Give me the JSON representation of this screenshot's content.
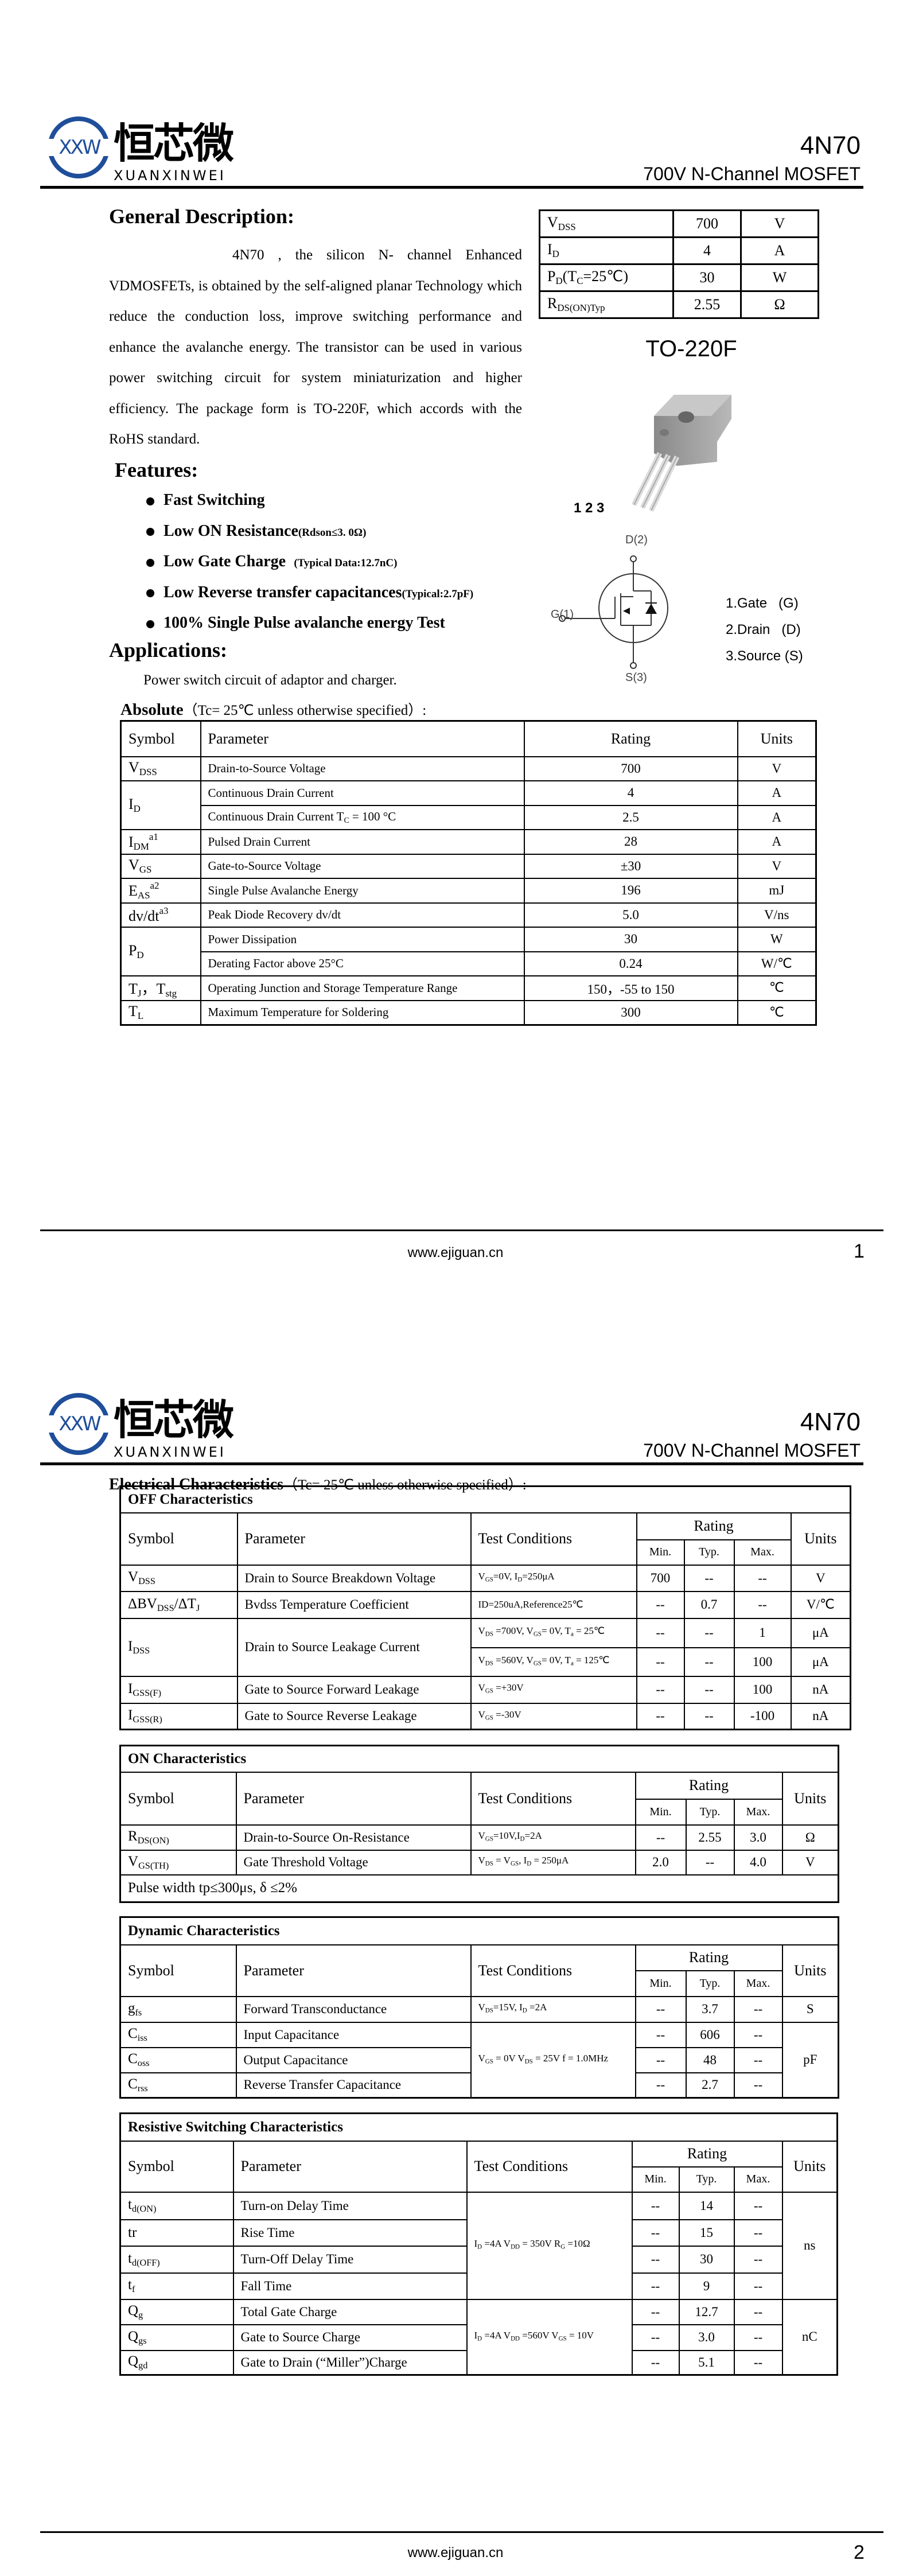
{
  "header": {
    "logo": {
      "mark": "XXW",
      "cn": "恒芯微",
      "en": "XUANXINWEI",
      "color": "#1f4e9a"
    },
    "part_number": "4N70",
    "subtitle": "700V N-Channel MOSFET"
  },
  "page1": {
    "general_description": {
      "heading": "General Description:",
      "part": "4N70",
      "text": ", the silicon N- channel Enhanced VDMOSFETs, is obtained by the self-aligned planar Technology which reduce the conduction loss, improve switching performance and enhance the avalanche energy. The transistor can be used in various power switching circuit for system miniaturization and higher efficiency. The package form is TO-220F, which accords with the RoHS standard."
    },
    "spec_table": [
      {
        "symbol": "V_{DSS}",
        "value": "700",
        "unit": "V"
      },
      {
        "symbol": "I_{D}",
        "value": "4",
        "unit": "A"
      },
      {
        "symbol": "P_{D}(T_{C}=25℃)",
        "value": "30",
        "unit": "W"
      },
      {
        "symbol": "R_{DS(ON)Typ}",
        "value": "2.55",
        "unit": "Ω"
      }
    ],
    "package": {
      "name": "TO-220F",
      "pins_label": "1 2 3"
    },
    "schematic": {
      "drain": "D(2)",
      "gate": "G(1)",
      "source": "S(3)"
    },
    "pin_legend": [
      "1.Gate   (G)",
      "2.Drain   (D)",
      "3.Source (S)"
    ],
    "features": {
      "heading": "Features:",
      "items": [
        {
          "main": "Fast Switching",
          "note": ""
        },
        {
          "main": "Low ON Resistance",
          "note": "(Rdson≤3. 0Ω)"
        },
        {
          "main": "Low Gate Charge",
          "note": "   (Typical Data:12.7nC)"
        },
        {
          "main": "Low Reverse transfer capacitances",
          "note": "(Typical:2.7pF)"
        },
        {
          "main": "100% Single Pulse avalanche energy Test",
          "note": ""
        }
      ]
    },
    "applications": {
      "heading": "Applications:",
      "text": "Power switch circuit of adaptor and charger."
    },
    "absolute": {
      "title_bold": "Absolute",
      "title_rest": "（Tc= 25℃  unless otherwise specified）:",
      "headers": [
        "Symbol",
        "Parameter",
        "Rating",
        "Units"
      ],
      "rows": [
        {
          "symbol": "V_{DSS}",
          "parameter": "Drain-to-Source Voltage",
          "rating": "700",
          "unit": "V"
        },
        {
          "symbol": "I_{D}",
          "span": 2,
          "parameter": "Continuous Drain Current",
          "rating": "4",
          "unit": "A"
        },
        {
          "parameter": "Continuous Drain Current T_{C} = 100 °C",
          "rating": "2.5",
          "unit": "A"
        },
        {
          "symbol": "I_{DM}^{a1}",
          "parameter": "Pulsed Drain Current",
          "rating": "28",
          "unit": "A"
        },
        {
          "symbol": "V_{GS}",
          "parameter": "Gate-to-Source Voltage",
          "rating": "±30",
          "unit": "V"
        },
        {
          "symbol": "E_{AS}^{a2}",
          "parameter": "Single Pulse Avalanche Energy",
          "rating": "196",
          "unit": "mJ"
        },
        {
          "symbol": "dv/dt^{a3}",
          "parameter": "Peak Diode Recovery dv/dt",
          "rating": "5.0",
          "unit": "V/ns"
        },
        {
          "symbol": "P_{D}",
          "span": 2,
          "parameter": "Power Dissipation",
          "rating": "30",
          "unit": "W"
        },
        {
          "parameter": "Derating Factor above 25°C",
          "rating": "0.24",
          "unit": "W/℃"
        },
        {
          "symbol": "T_{J}，T_{stg}",
          "parameter": "Operating Junction and Storage Temperature Range",
          "rating": "150，-55 to 150",
          "unit": "℃"
        },
        {
          "symbol": "T_{L}",
          "parameter": "Maximum Temperature for Soldering",
          "rating": "300",
          "unit": "℃"
        }
      ]
    },
    "footer": {
      "url": "www.ejiguan.cn",
      "page": "1"
    }
  },
  "page2": {
    "title_bold": "Electrical Characteristics",
    "title_rest": "（Tc= 25℃  unless otherwise specified）:",
    "col_headers": {
      "symbol": "Symbol",
      "parameter": "Parameter",
      "conditions": "Test Conditions",
      "rating": "Rating",
      "min": "Min.",
      "typ": "Typ.",
      "max": "Max.",
      "units": "Units"
    },
    "tables": [
      {
        "title": "OFF Characteristics",
        "rows": [
          {
            "symbol": "V_{DSS}",
            "parameter": "Drain to Source Breakdown Voltage",
            "cond": "V_{GS}=0V, I_{D}=250μA",
            "min": "700",
            "typ": "--",
            "max": "--",
            "unit": "V"
          },
          {
            "symbol": "ΔBV_{DSS}/ΔT_{J}",
            "parameter": "Bvdss Temperature Coefficient",
            "cond": "ID=250uA,Reference25℃",
            "min": "--",
            "typ": "0.7",
            "max": "--",
            "unit": "V/℃"
          },
          {
            "symbol": "I_{DSS}",
            "span": 2,
            "parameter": "Drain to Source Leakage Current",
            "pspan": 2,
            "cond": "V_{DS} =700V, V_{GS}= 0V, T_{a} = 25℃",
            "min": "--",
            "typ": "--",
            "max": "1",
            "unit": "μA"
          },
          {
            "cond": "V_{DS} =560V, V_{GS}= 0V, T_{a} = 125℃",
            "min": "--",
            "typ": "--",
            "max": "100",
            "unit": "μA"
          },
          {
            "symbol": "I_{GSS(F)}",
            "parameter": "Gate to Source Forward Leakage",
            "cond": "V_{GS} =+30V",
            "min": "--",
            "typ": "--",
            "max": "100",
            "unit": "nA"
          },
          {
            "symbol": "I_{GSS(R)}",
            "parameter": "Gate to Source Reverse Leakage",
            "cond": "V_{GS} =-30V",
            "min": "--",
            "typ": "--",
            "max": "-100",
            "unit": "nA"
          }
        ]
      },
      {
        "title": "ON Characteristics",
        "rows": [
          {
            "symbol": "R_{DS(ON)}",
            "parameter": "Drain-to-Source On-Resistance",
            "cond": "V_{GS}=10V,I_{D}=2A",
            "min": "--",
            "typ": "2.55",
            "max": "3.0",
            "unit": "Ω"
          },
          {
            "symbol": "V_{GS(TH)}",
            "parameter": "Gate Threshold Voltage",
            "cond": "V_{DS} = V_{GS}, I_{D} = 250μA",
            "min": "2.0",
            "typ": "--",
            "max": "4.0",
            "unit": "V"
          }
        ],
        "note": "Pulse width tp≤300μs, δ ≤2%"
      },
      {
        "title": "Dynamic Characteristics",
        "rows": [
          {
            "symbol": "g_{fs}",
            "parameter": "Forward Transconductance",
            "cond": "V_{DS}=15V, I_{D} =2A",
            "min": "--",
            "typ": "3.7",
            "max": "--",
            "unit": "S"
          },
          {
            "symbol": "C_{iss}",
            "parameter": "Input Capacitance",
            "cond": "V_{GS} = 0V V_{DS} = 25V f = 1.0MHz",
            "cspan": 3,
            "min": "--",
            "typ": "606",
            "max": "--",
            "unit": "pF",
            "uspan": 3
          },
          {
            "symbol": "C_{oss}",
            "parameter": "Output Capacitance",
            "min": "--",
            "typ": "48",
            "max": "--"
          },
          {
            "symbol": "C_{rss}",
            "parameter": "Reverse Transfer Capacitance",
            "min": "--",
            "typ": "2.7",
            "max": "--"
          }
        ]
      },
      {
        "title": "Resistive Switching Characteristics",
        "rows": [
          {
            "symbol": "t_{d(ON)}",
            "parameter": "Turn-on Delay Time",
            "cond": "I_{D} =4A    V_{DD} = 350V R_{G} =10Ω",
            "cspan": 4,
            "min": "--",
            "typ": "14",
            "max": "--",
            "unit": "ns",
            "uspan": 4
          },
          {
            "symbol": "tr",
            "parameter": "Rise Time",
            "min": "--",
            "typ": "15",
            "max": "--"
          },
          {
            "symbol": "t_{d(OFF)}",
            "parameter": "Turn-Off Delay Time",
            "min": "--",
            "typ": "30",
            "max": "--"
          },
          {
            "symbol": "t_{f}",
            "parameter": "Fall Time",
            "min": "--",
            "typ": "9",
            "max": "--"
          },
          {
            "symbol": "Q_{g}",
            "parameter": "Total Gate Charge",
            "cond": "I_{D} =4A    V_{DD} =560V V_{GS} = 10V",
            "cspan": 3,
            "min": "--",
            "typ": "12.7",
            "max": "--",
            "unit": "nC",
            "uspan": 3
          },
          {
            "symbol": "Q_{gs}",
            "parameter": "Gate to Source Charge",
            "min": "--",
            "typ": "3.0",
            "max": "--"
          },
          {
            "symbol": "Q_{gd}",
            "parameter": "Gate to Drain (“Miller”)Charge",
            "min": "--",
            "typ": "5.1",
            "max": "--"
          }
        ]
      }
    ],
    "footer": {
      "url": "www.ejiguan.cn",
      "page": "2"
    }
  }
}
